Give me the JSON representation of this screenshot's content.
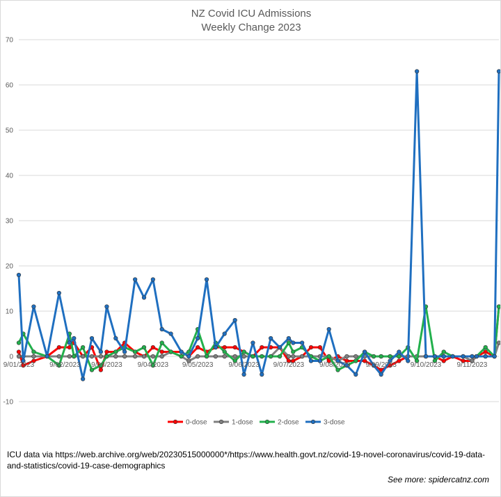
{
  "title": "NZ Covid ICU Admissions",
  "subtitle": "Weekly Change 2023",
  "source_text": "ICU data via https://web.archive.org/web/20230515000000*/https://www.health.govt.nz/covid-19-novel-coronavirus/covid-19-data-and-statistics/covid-19-case-demographics",
  "credit_text": "See more: spidercatnz.com",
  "chart_data": {
    "type": "line",
    "title": "NZ Covid ICU Admissions",
    "subtitle": "Weekly Change 2023",
    "ylim": [
      -10,
      70
    ],
    "yticks": [
      -10,
      0,
      10,
      20,
      30,
      40,
      50,
      60,
      70
    ],
    "xlim": [
      "2023-01-09",
      "2023-11-27"
    ],
    "xticks": [
      "9/01/2023",
      "9/02/2023",
      "9/03/2023",
      "9/04/2023",
      "9/05/2023",
      "9/06/2023",
      "9/07/2023",
      "9/08/2023",
      "9/09/2023",
      "9/10/2023",
      "9/11/2023"
    ],
    "xtick_dates": [
      "2023-01-09",
      "2023-02-09",
      "2023-03-09",
      "2023-04-09",
      "2023-05-09",
      "2023-06-09",
      "2023-07-09",
      "2023-08-09",
      "2023-09-09",
      "2023-10-09",
      "2023-11-09"
    ],
    "x": [
      "2023-01-09",
      "2023-01-12",
      "2023-01-19",
      "2023-01-28",
      "2023-02-05",
      "2023-02-12",
      "2023-02-15",
      "2023-02-21",
      "2023-02-27",
      "2023-03-05",
      "2023-03-09",
      "2023-03-15",
      "2023-03-21",
      "2023-03-28",
      "2023-04-03",
      "2023-04-09",
      "2023-04-15",
      "2023-04-21",
      "2023-04-28",
      "2023-05-03",
      "2023-05-09",
      "2023-05-15",
      "2023-05-21",
      "2023-05-27",
      "2023-06-03",
      "2023-06-09",
      "2023-06-15",
      "2023-06-21",
      "2023-06-27",
      "2023-07-03",
      "2023-07-09",
      "2023-07-12",
      "2023-07-18",
      "2023-07-24",
      "2023-07-30",
      "2023-08-05",
      "2023-08-11",
      "2023-08-17",
      "2023-08-23",
      "2023-08-29",
      "2023-09-04",
      "2023-09-09",
      "2023-09-15",
      "2023-09-21",
      "2023-09-27",
      "2023-10-03",
      "2023-10-09",
      "2023-10-15",
      "2023-10-21",
      "2023-10-27",
      "2023-11-03",
      "2023-11-09",
      "2023-11-12",
      "2023-11-18",
      "2023-11-24",
      "2023-11-27"
    ],
    "series": [
      {
        "name": "0-dose",
        "color": "#ff0000",
        "values": [
          1,
          -2,
          -1,
          0,
          2,
          2,
          3,
          0,
          2,
          -3,
          1,
          1,
          3,
          1,
          0,
          2,
          1,
          1,
          1,
          0,
          2,
          1,
          2,
          2,
          2,
          1,
          0,
          2,
          2,
          2,
          -1,
          -1,
          0,
          2,
          2,
          -1,
          0,
          -1,
          -1,
          -1,
          -2,
          -3,
          -2,
          -1,
          0,
          0,
          0,
          0,
          -1,
          0,
          -1,
          -1,
          0,
          1,
          0,
          11
        ]
      },
      {
        "name": "1-dose",
        "color": "#808080",
        "values": [
          0,
          0,
          0,
          0,
          0,
          0,
          0,
          0,
          0,
          0,
          0,
          0,
          0,
          0,
          0,
          0,
          0,
          1,
          0,
          -1,
          0,
          0,
          0,
          0,
          0,
          0,
          0,
          0,
          0,
          2,
          0,
          0,
          0,
          0,
          0,
          0,
          -1,
          0,
          0,
          0,
          0,
          0,
          0,
          0,
          0,
          0,
          0,
          0,
          0,
          0,
          0,
          -1,
          0,
          0,
          0,
          3
        ]
      },
      {
        "name": "2-dose",
        "color": "#22b04c",
        "values": [
          3,
          5,
          1,
          0,
          -2,
          5,
          0,
          2,
          -3,
          -2,
          0,
          1,
          2,
          1,
          2,
          -2,
          3,
          1,
          0,
          1,
          6,
          0,
          3,
          1,
          -1,
          1,
          0,
          0,
          0,
          0,
          3,
          1,
          2,
          0,
          -1,
          0,
          -3,
          -2,
          -1,
          1,
          0,
          0,
          0,
          0,
          2,
          -1,
          11,
          -1,
          1,
          0,
          0,
          0,
          0,
          2,
          0,
          11
        ]
      },
      {
        "name": "3-dose",
        "color": "#1f6fc0",
        "values": [
          18,
          -1,
          11,
          0,
          14,
          3,
          4,
          -5,
          4,
          1,
          11,
          4,
          1,
          17,
          13,
          17,
          6,
          5,
          1,
          0,
          4,
          17,
          2,
          5,
          8,
          -4,
          3,
          -4,
          4,
          2,
          4,
          3,
          3,
          -1,
          -1,
          6,
          -1,
          -2,
          -4,
          1,
          -2,
          -4,
          -1,
          1,
          -1,
          63,
          0,
          0,
          0,
          0,
          0,
          0,
          0,
          0,
          0,
          63
        ]
      }
    ],
    "legend": [
      "0-dose",
      "1-dose",
      "2-dose",
      "3-dose"
    ],
    "legend_position": "bottom",
    "grid": true
  }
}
